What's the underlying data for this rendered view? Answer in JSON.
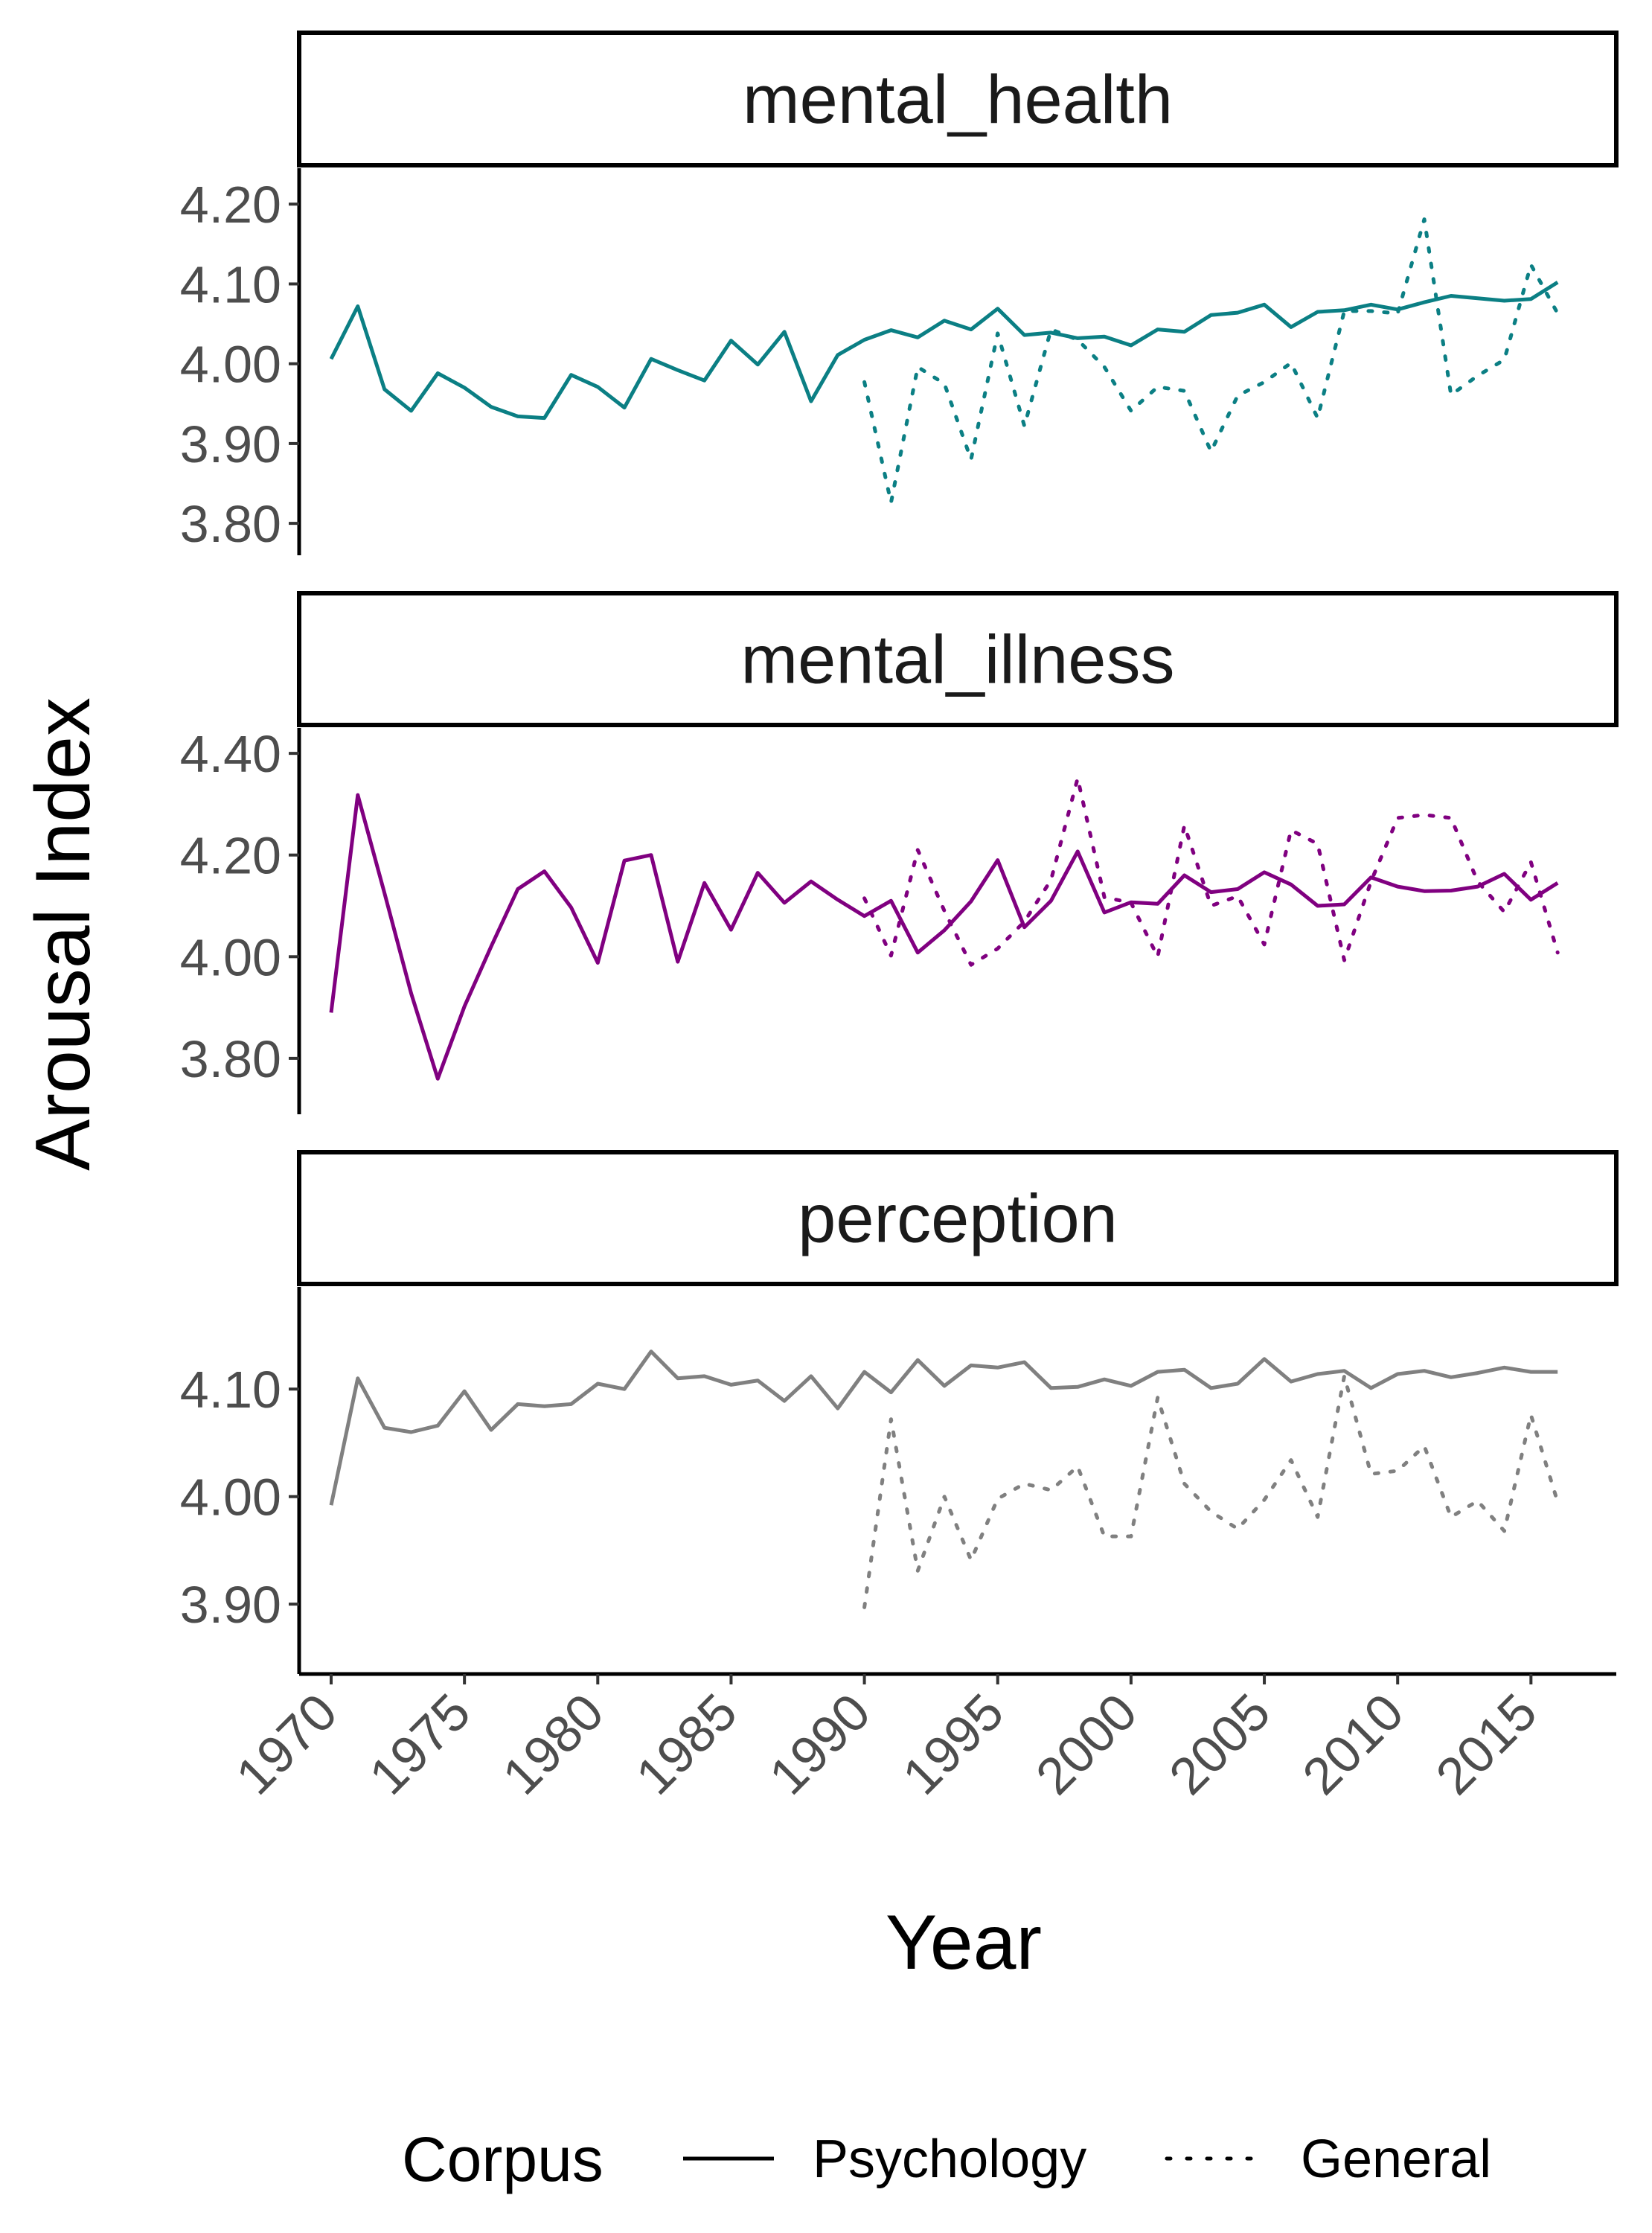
{
  "chart_data": {
    "type": "line",
    "xlabel": "Year",
    "ylabel": "Arousal Index",
    "x_ticks": [
      1970,
      1975,
      1980,
      1985,
      1990,
      1995,
      2000,
      2005,
      2010,
      2015
    ],
    "xlim": [
      1968.8,
      2018.2
    ],
    "legend": {
      "title": "Corpus",
      "position": "bottom",
      "entries": [
        {
          "label": "Psychology",
          "linetype": "solid"
        },
        {
          "label": "General",
          "linetype": "dotted"
        }
      ]
    },
    "panels": [
      {
        "title": "mental_health",
        "color": "#0b7f84",
        "ylim": [
          3.76,
          4.245
        ],
        "y_ticks": [
          3.8,
          3.9,
          4.0,
          4.1,
          4.2
        ],
        "y_tick_labels": [
          "3.80",
          "3.90",
          "4.00",
          "4.10",
          "4.20"
        ],
        "series": [
          {
            "name": "Psychology",
            "x": [
              1970,
              1971,
              1972,
              1973,
              1974,
              1975,
              1976,
              1977,
              1978,
              1979,
              1980,
              1981,
              1982,
              1983,
              1984,
              1985,
              1986,
              1987,
              1988,
              1989,
              1990,
              1991,
              1992,
              1993,
              1994,
              1995,
              1996,
              1997,
              1998,
              1999,
              2000,
              2001,
              2002,
              2003,
              2004,
              2005,
              2006,
              2007,
              2008,
              2009,
              2010,
              2011,
              2012,
              2013,
              2014,
              2015,
              2016
            ],
            "values": [
              4.006,
              4.072,
              3.968,
              3.941,
              3.988,
              3.97,
              3.946,
              3.934,
              3.932,
              3.986,
              3.971,
              3.945,
              4.006,
              3.992,
              3.979,
              4.029,
              3.999,
              4.04,
              3.953,
              4.011,
              4.03,
              4.042,
              4.033,
              4.054,
              4.043,
              4.069,
              4.036,
              4.039,
              4.032,
              4.034,
              4.023,
              4.043,
              4.04,
              4.061,
              4.064,
              4.074,
              4.046,
              4.065,
              4.067,
              4.074,
              4.068,
              4.077,
              4.085,
              4.082,
              4.079,
              4.081,
              4.102
            ]
          },
          {
            "name": "General",
            "x": [
              1990,
              1991,
              1992,
              1993,
              1994,
              1995,
              1996,
              1997,
              1998,
              1999,
              2000,
              2001,
              2002,
              2003,
              2004,
              2005,
              2006,
              2007,
              2008,
              2009,
              2010,
              2011,
              2012,
              2013,
              2014,
              2015,
              2016
            ],
            "values": [
              3.977,
              3.826,
              3.996,
              3.975,
              3.88,
              4.038,
              3.922,
              4.043,
              4.03,
              3.996,
              3.941,
              3.971,
              3.966,
              3.89,
              3.96,
              3.977,
              4.001,
              3.932,
              4.066,
              4.066,
              4.063,
              4.181,
              3.961,
              3.985,
              4.005,
              4.124,
              4.063
            ]
          }
        ]
      },
      {
        "title": "mental_illness",
        "color": "#800080",
        "ylim": [
          3.69,
          4.45
        ],
        "y_ticks": [
          3.8,
          4.0,
          4.2,
          4.4
        ],
        "y_tick_labels": [
          "3.80",
          "4.00",
          "4.20",
          "4.40"
        ],
        "series": [
          {
            "name": "Psychology",
            "x": [
              1970,
              1971,
              1972,
              1973,
              1974,
              1975,
              1976,
              1977,
              1978,
              1979,
              1980,
              1981,
              1982,
              1983,
              1984,
              1985,
              1986,
              1987,
              1988,
              1989,
              1990,
              1991,
              1992,
              1993,
              1994,
              1995,
              1996,
              1997,
              1998,
              1999,
              2000,
              2001,
              2002,
              2003,
              2004,
              2005,
              2006,
              2007,
              2008,
              2009,
              2010,
              2011,
              2012,
              2013,
              2014,
              2015,
              2016
            ],
            "values": [
              3.89,
              4.318,
              4.125,
              3.928,
              3.76,
              3.902,
              4.02,
              4.133,
              4.168,
              4.097,
              3.988,
              4.189,
              4.2,
              3.99,
              4.145,
              4.053,
              4.165,
              4.106,
              4.148,
              4.112,
              4.08,
              4.11,
              4.008,
              4.052,
              4.109,
              4.19,
              4.058,
              4.11,
              4.207,
              4.087,
              4.107,
              4.104,
              4.16,
              4.127,
              4.133,
              4.166,
              4.142,
              4.1,
              4.103,
              4.156,
              4.138,
              4.129,
              4.13,
              4.138,
              4.163,
              4.112,
              4.145
            ]
          },
          {
            "name": "General",
            "x": [
              1990,
              1991,
              1992,
              1993,
              1994,
              1995,
              1996,
              1997,
              1998,
              1999,
              2000,
              2001,
              2002,
              2003,
              2004,
              2005,
              2006,
              2007,
              2008,
              2009,
              2010,
              2011,
              2012,
              2013,
              2014,
              2015,
              2016
            ],
            "values": [
              4.115,
              4.002,
              4.21,
              4.09,
              3.984,
              4.016,
              4.069,
              4.151,
              4.351,
              4.117,
              4.106,
              4.0,
              4.258,
              4.1,
              4.119,
              4.024,
              4.249,
              4.222,
              3.993,
              4.148,
              4.273,
              4.279,
              4.273,
              4.148,
              4.088,
              4.186,
              4.008
            ]
          }
        ]
      },
      {
        "title": "perception",
        "color": "#808080",
        "ylim": [
          3.835,
          4.195
        ],
        "y_ticks": [
          3.9,
          4.0,
          4.1
        ],
        "y_tick_labels": [
          "3.90",
          "4.00",
          "4.10"
        ],
        "series": [
          {
            "name": "Psychology",
            "x": [
              1970,
              1971,
              1972,
              1973,
              1974,
              1975,
              1976,
              1977,
              1978,
              1979,
              1980,
              1981,
              1982,
              1983,
              1984,
              1985,
              1986,
              1987,
              1988,
              1989,
              1990,
              1991,
              1992,
              1993,
              1994,
              1995,
              1996,
              1997,
              1998,
              1999,
              2000,
              2001,
              2002,
              2003,
              2004,
              2005,
              2006,
              2007,
              2008,
              2009,
              2010,
              2011,
              2012,
              2013,
              2014,
              2015,
              2016
            ],
            "values": [
              3.992,
              4.11,
              4.064,
              4.06,
              4.066,
              4.098,
              4.062,
              4.086,
              4.084,
              4.086,
              4.105,
              4.1,
              4.135,
              4.11,
              4.112,
              4.104,
              4.108,
              4.089,
              4.112,
              4.082,
              4.116,
              4.097,
              4.127,
              4.103,
              4.122,
              4.12,
              4.125,
              4.101,
              4.102,
              4.109,
              4.103,
              4.116,
              4.118,
              4.101,
              4.105,
              4.128,
              4.107,
              4.114,
              4.117,
              4.101,
              4.114,
              4.117,
              4.111,
              4.115,
              4.12,
              4.116,
              4.116
            ]
          },
          {
            "name": "General",
            "x": [
              1990,
              1991,
              1992,
              1993,
              1994,
              1995,
              1996,
              1997,
              1998,
              1999,
              2000,
              2001,
              2002,
              2003,
              2004,
              2005,
              2006,
              2007,
              2008,
              2009,
              2010,
              2011,
              2012,
              2013,
              2014,
              2015,
              2016
            ],
            "values": [
              3.897,
              4.072,
              3.931,
              4.0,
              3.941,
              3.998,
              4.012,
              4.006,
              4.028,
              3.963,
              3.963,
              4.092,
              4.012,
              3.986,
              3.97,
              3.997,
              4.034,
              3.981,
              4.112,
              4.021,
              4.024,
              4.047,
              3.981,
              3.996,
              3.968,
              4.076,
              3.995
            ]
          }
        ]
      }
    ]
  }
}
